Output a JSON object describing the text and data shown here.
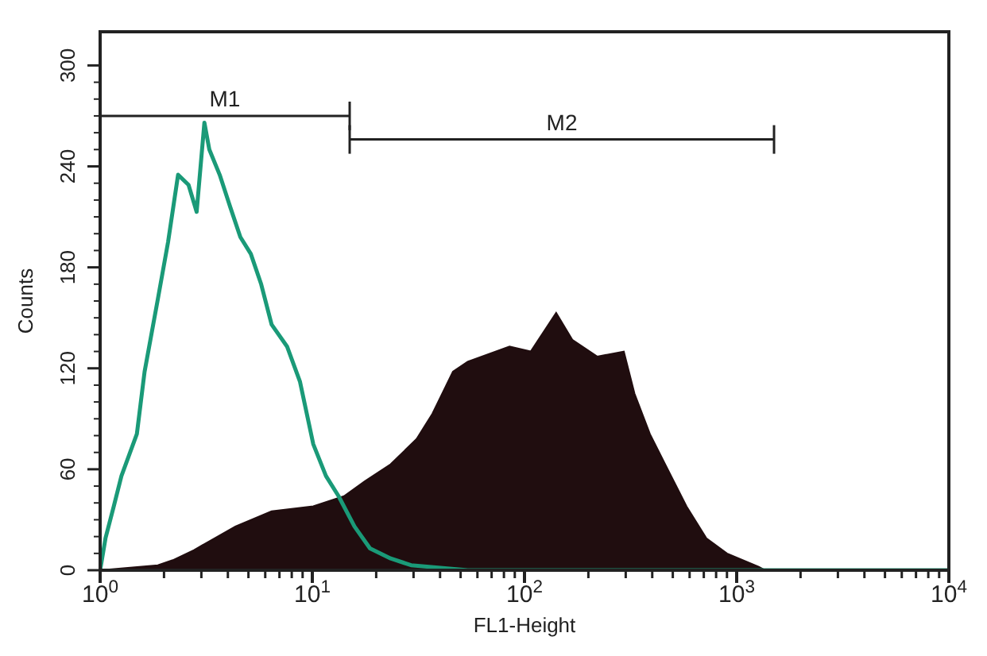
{
  "chart_data": {
    "type": "line",
    "xlabel": "FL1-Height",
    "ylabel": "Counts",
    "log": "x",
    "marker": "none",
    "line_style": "solid",
    "xlim": [
      1,
      10000
    ],
    "xticks": [
      {
        "value": 1,
        "label": "10$^{0}$"
      },
      {
        "value": 2,
        "label": null
      },
      {
        "value": 3,
        "label": null
      },
      {
        "value": 4,
        "label": null
      },
      {
        "value": 5,
        "label": null
      },
      {
        "value": 6,
        "label": null
      },
      {
        "value": 7,
        "label": null
      },
      {
        "value": 8,
        "label": null
      },
      {
        "value": 9,
        "label": null
      },
      {
        "value": 10,
        "label": "10$^{1}$"
      },
      {
        "value": 20,
        "label": null
      },
      {
        "value": 30,
        "label": null
      },
      {
        "value": 40,
        "label": null
      },
      {
        "value": 50,
        "label": null
      },
      {
        "value": 60,
        "label": null
      },
      {
        "value": 70,
        "label": null
      },
      {
        "value": 80,
        "label": null
      },
      {
        "value": 90,
        "label": null
      },
      {
        "value": 100,
        "label": "10$^{2}$"
      },
      {
        "value": 200,
        "label": null
      },
      {
        "value": 300,
        "label": null
      },
      {
        "value": 400,
        "label": null
      },
      {
        "value": 500,
        "label": null
      },
      {
        "value": 600,
        "label": null
      },
      {
        "value": 700,
        "label": null
      },
      {
        "value": 800,
        "label": null
      },
      {
        "value": 900,
        "label": null
      },
      {
        "value": 1000,
        "label": "10$^{3}$"
      },
      {
        "value": 2000,
        "label": null
      },
      {
        "value": 3000,
        "label": null
      },
      {
        "value": 4000,
        "label": null
      },
      {
        "value": 5000,
        "label": null
      },
      {
        "value": 6000,
        "label": null
      },
      {
        "value": 7000,
        "label": null
      },
      {
        "value": 8000,
        "label": null
      },
      {
        "value": 9000,
        "label": null
      },
      {
        "value": 10000,
        "label": "10$^{4}$"
      }
    ],
    "ylim": [
      0,
      320
    ],
    "yticks": [
      0,
      {
        "value": 10,
        "label": null
      },
      {
        "value": 20,
        "label": null
      },
      {
        "value": 30,
        "label": null
      },
      {
        "value": 40,
        "label": null
      },
      {
        "value": 50,
        "label": null
      },
      60,
      {
        "value": 70,
        "label": null
      },
      {
        "value": 80,
        "label": null
      },
      {
        "value": 90,
        "label": null
      },
      {
        "value": 100,
        "label": null
      },
      {
        "value": 110,
        "label": null
      },
      120,
      {
        "value": 130,
        "label": null
      },
      {
        "value": 140,
        "label": null
      },
      {
        "value": 150,
        "label": null
      },
      {
        "value": 160,
        "label": null
      },
      {
        "value": 170,
        "label": null
      },
      180,
      {
        "value": 190,
        "label": null
      },
      {
        "value": 200,
        "label": null
      },
      {
        "value": 210,
        "label": null
      },
      {
        "value": 220,
        "label": null
      },
      {
        "value": 230,
        "label": null
      },
      240,
      {
        "value": 250,
        "label": null
      },
      {
        "value": 260,
        "label": null
      },
      {
        "value": 270,
        "label": null
      },
      {
        "value": 280,
        "label": null
      },
      {
        "value": 290,
        "label": null
      },
      300
    ],
    "series": [
      {
        "name": "M1",
        "color": "#222222",
        "x": [
          1,
          15
        ],
        "values": [
          270,
          270
        ]
      },
      {
        "name": "M2",
        "color": "#222222",
        "x": [
          15,
          1500
        ],
        "values": [
          256,
          256
        ]
      },
      {
        "type": "area",
        "color": "#200d0f",
        "x": [
          1,
          1.87,
          2.2,
          2.77,
          3.46,
          4.34,
          6.43,
          10.1,
          14.1,
          17.7,
          23.4,
          31,
          36.8,
          46,
          54,
          85,
          107,
          141,
          168,
          220,
          294,
          330,
          390,
          460,
          580,
          720,
          900,
          1270,
          1360,
          10000
        ],
        "values": [
          0,
          3,
          6,
          12,
          19,
          26,
          35,
          38,
          44,
          53,
          63,
          78,
          93,
          118,
          124,
          133,
          130,
          153,
          137,
          127,
          130,
          105,
          81,
          63,
          38,
          19,
          10,
          2,
          0,
          0
        ]
      },
      {
        "type": "line",
        "color": "#1a9a78",
        "x": [
          1,
          1.06,
          1.16,
          1.26,
          1.49,
          1.62,
          1.87,
          2.09,
          2.33,
          2.61,
          2.85,
          3.1,
          3.27,
          3.66,
          4.1,
          4.58,
          5.13,
          5.74,
          6.43,
          7.6,
          8.75,
          10.1,
          11.6,
          13.3,
          15.8,
          18.7,
          23.4,
          29.2,
          54,
          10000
        ],
        "values": [
          0,
          19,
          38,
          56,
          81,
          118,
          161,
          195,
          235,
          229,
          213,
          266,
          250,
          235,
          216,
          198,
          188,
          170,
          146,
          133,
          112,
          75,
          56,
          44,
          26,
          13,
          7,
          3,
          0,
          0
        ]
      }
    ]
  }
}
